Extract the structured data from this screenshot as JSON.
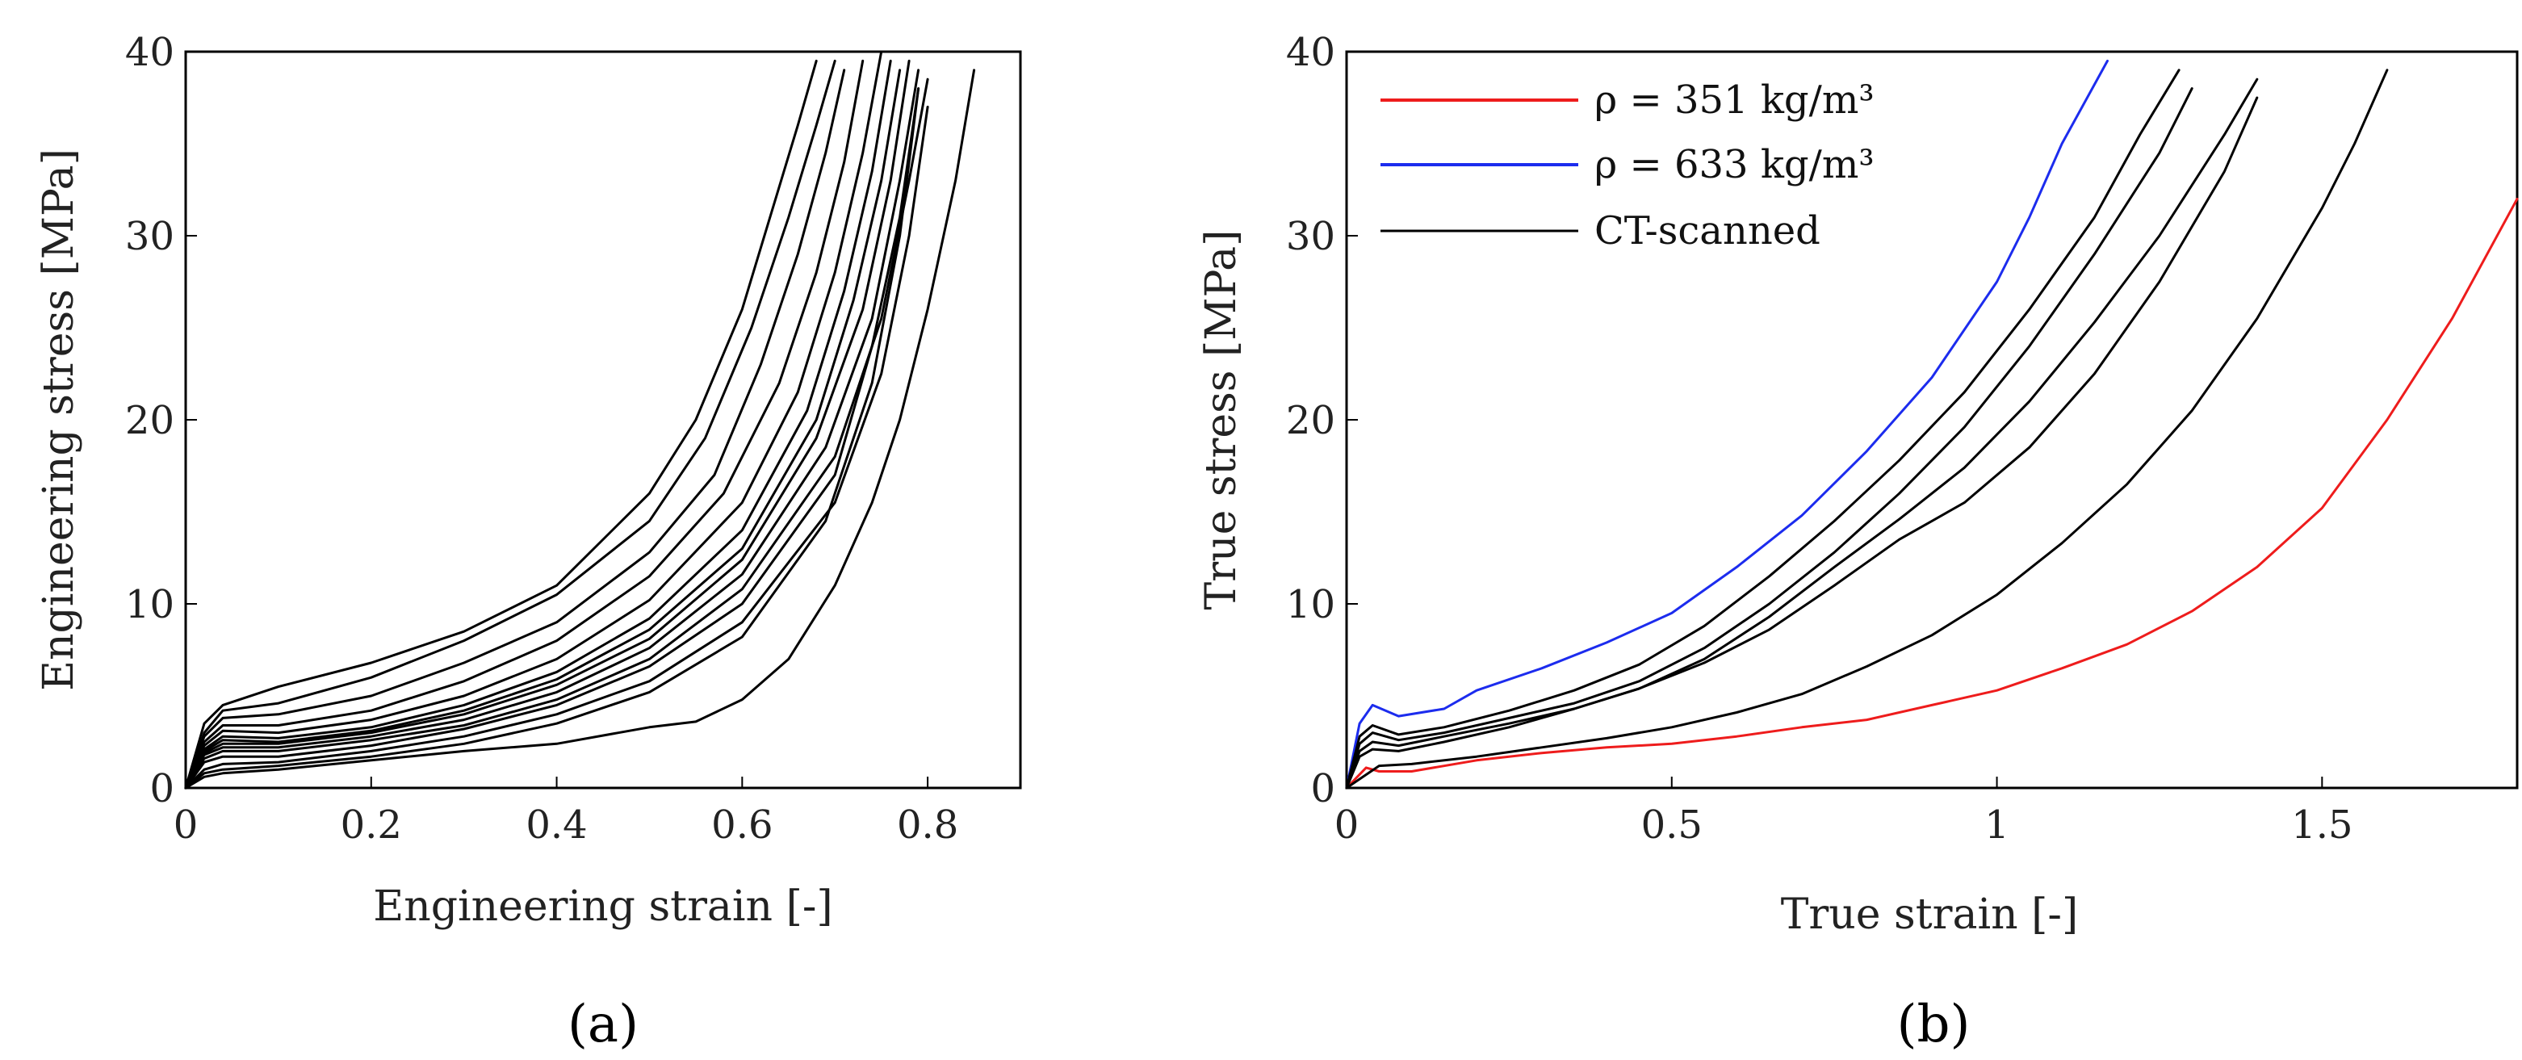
{
  "chart_data": [
    {
      "type": "line",
      "panel_label": "(a)",
      "xlabel": "Engineering strain [-]",
      "ylabel": "Engineering stress [MPa]",
      "xlim": [
        0,
        0.9
      ],
      "ylim": [
        0,
        40
      ],
      "xticks": [
        0,
        0.2,
        0.4,
        0.6,
        0.8
      ],
      "xtick_labels": [
        "0",
        "0.2",
        "0.4",
        "0.6",
        "0.8"
      ],
      "yticks": [
        0,
        10,
        20,
        30,
        40
      ],
      "ytick_labels": [
        "0",
        "10",
        "20",
        "30",
        "40"
      ],
      "grid": false,
      "color": "#000000",
      "series": [
        {
          "x": [
            0,
            0.02,
            0.04,
            0.1,
            0.2,
            0.3,
            0.4,
            0.5,
            0.55,
            0.6,
            0.63,
            0.66,
            0.68
          ],
          "y": [
            0,
            3.5,
            4.5,
            5.5,
            6.8,
            8.5,
            11,
            16,
            20,
            26,
            31,
            36,
            39.5
          ]
        },
        {
          "x": [
            0,
            0.02,
            0.04,
            0.1,
            0.2,
            0.3,
            0.4,
            0.5,
            0.56,
            0.61,
            0.65,
            0.68,
            0.7
          ],
          "y": [
            0,
            3,
            4.2,
            4.6,
            6,
            8,
            10.5,
            14.5,
            19,
            25,
            31,
            36,
            39.5
          ]
        },
        {
          "x": [
            0,
            0.02,
            0.04,
            0.1,
            0.2,
            0.3,
            0.4,
            0.5,
            0.57,
            0.62,
            0.66,
            0.69,
            0.71
          ],
          "y": [
            0,
            2.8,
            3.8,
            4,
            5,
            6.8,
            9,
            12.8,
            17,
            23,
            29,
            34.5,
            39
          ]
        },
        {
          "x": [
            0,
            0.02,
            0.04,
            0.1,
            0.2,
            0.3,
            0.4,
            0.5,
            0.58,
            0.64,
            0.68,
            0.71,
            0.73
          ],
          "y": [
            0,
            2.5,
            3.4,
            3.4,
            4.2,
            5.8,
            8,
            11.5,
            16,
            22,
            28,
            34,
            39.5
          ]
        },
        {
          "x": [
            0,
            0.02,
            0.04,
            0.1,
            0.2,
            0.3,
            0.4,
            0.5,
            0.6,
            0.66,
            0.7,
            0.73,
            0.75
          ],
          "y": [
            0,
            2.3,
            3.1,
            3,
            3.7,
            5,
            7,
            10.2,
            15.5,
            21.5,
            28,
            34.5,
            40
          ]
        },
        {
          "x": [
            0,
            0.02,
            0.04,
            0.1,
            0.2,
            0.3,
            0.4,
            0.5,
            0.6,
            0.67,
            0.71,
            0.74,
            0.76
          ],
          "y": [
            0,
            2.1,
            2.8,
            2.7,
            3.3,
            4.5,
            6.3,
            9.2,
            14,
            20.5,
            27,
            33.5,
            39.5
          ]
        },
        {
          "x": [
            0,
            0.02,
            0.04,
            0.1,
            0.2,
            0.3,
            0.4,
            0.5,
            0.6,
            0.68,
            0.72,
            0.75,
            0.77
          ],
          "y": [
            0,
            2,
            2.6,
            2.5,
            3.1,
            4.2,
            5.9,
            8.6,
            13,
            20,
            26.5,
            33,
            39
          ]
        },
        {
          "x": [
            0,
            0.02,
            0.04,
            0.1,
            0.2,
            0.3,
            0.4,
            0.5,
            0.6,
            0.68,
            0.73,
            0.76,
            0.78
          ],
          "y": [
            0,
            1.9,
            2.4,
            2.4,
            3,
            4,
            5.6,
            8.1,
            12.4,
            19,
            26,
            33,
            39.5
          ]
        },
        {
          "x": [
            0,
            0.02,
            0.04,
            0.1,
            0.2,
            0.3,
            0.4,
            0.5,
            0.6,
            0.69,
            0.74,
            0.77,
            0.79
          ],
          "y": [
            0,
            1.8,
            2.2,
            2.2,
            2.8,
            3.7,
            5.2,
            7.6,
            11.6,
            18.5,
            25.5,
            33,
            39
          ]
        },
        {
          "x": [
            0,
            0.02,
            0.04,
            0.1,
            0.2,
            0.3,
            0.4,
            0.5,
            0.6,
            0.7,
            0.75,
            0.78,
            0.8
          ],
          "y": [
            0,
            1.6,
            2,
            2,
            2.6,
            3.4,
            4.8,
            7,
            10.8,
            18,
            25.5,
            33,
            38.5
          ]
        },
        {
          "x": [
            0,
            0.02,
            0.04,
            0.1,
            0.2,
            0.3,
            0.4,
            0.5,
            0.6,
            0.7,
            0.74,
            0.77,
            0.79
          ],
          "y": [
            0,
            1.4,
            1.7,
            1.7,
            2.3,
            3.2,
            4.5,
            6.6,
            10,
            17,
            24,
            31,
            38
          ]
        },
        {
          "x": [
            0,
            0.02,
            0.04,
            0.1,
            0.2,
            0.3,
            0.4,
            0.5,
            0.6,
            0.7,
            0.75,
            0.78,
            0.8
          ],
          "y": [
            0,
            1,
            1.3,
            1.4,
            2,
            2.8,
            4,
            5.8,
            9,
            15.5,
            22.5,
            30,
            37
          ]
        },
        {
          "x": [
            0,
            0.02,
            0.04,
            0.1,
            0.2,
            0.3,
            0.4,
            0.5,
            0.6,
            0.69,
            0.74,
            0.77,
            0.79
          ],
          "y": [
            0,
            0.8,
            1,
            1.2,
            1.7,
            2.4,
            3.5,
            5.2,
            8.2,
            14.5,
            22,
            30,
            38
          ]
        },
        {
          "x": [
            0,
            0.02,
            0.04,
            0.1,
            0.2,
            0.3,
            0.4,
            0.5,
            0.55,
            0.6,
            0.65,
            0.7,
            0.74,
            0.77,
            0.8,
            0.83,
            0.85
          ],
          "y": [
            0,
            0.6,
            0.8,
            1,
            1.5,
            2,
            2.4,
            3.3,
            3.6,
            4.8,
            7,
            11,
            15.5,
            20,
            26,
            33,
            39
          ]
        }
      ]
    },
    {
      "type": "line",
      "panel_label": "(b)",
      "xlabel": "True strain [-]",
      "ylabel": "True stress [MPa]",
      "xlim": [
        0,
        1.8
      ],
      "ylim": [
        0,
        40
      ],
      "xticks": [
        0,
        0.5,
        1,
        1.5
      ],
      "xtick_labels": [
        "0",
        "0.5",
        "1",
        "1.5"
      ],
      "yticks": [
        0,
        10,
        20,
        30,
        40
      ],
      "ytick_labels": [
        "0",
        "10",
        "20",
        "30",
        "40"
      ],
      "grid": false,
      "legend_position": "top-left",
      "legend": [
        {
          "label": "ρ = 351 kg/m³",
          "color": "#ee1c1c"
        },
        {
          "label": "ρ = 633 kg/m³",
          "color": "#1c2cee"
        },
        {
          "label": "CT-scanned",
          "color": "#000000"
        }
      ],
      "series": [
        {
          "name": "ρ = 351 kg/m³",
          "color": "#ee1c1c",
          "x": [
            0,
            0.03,
            0.05,
            0.1,
            0.2,
            0.3,
            0.4,
            0.5,
            0.6,
            0.7,
            0.8,
            0.9,
            1.0,
            1.1,
            1.2,
            1.3,
            1.4,
            1.5,
            1.6,
            1.7,
            1.8
          ],
          "y": [
            0,
            1.1,
            0.9,
            0.9,
            1.5,
            1.9,
            2.2,
            2.4,
            2.8,
            3.3,
            3.7,
            4.5,
            5.3,
            6.5,
            7.8,
            9.6,
            12,
            15.2,
            20,
            25.5,
            32
          ]
        },
        {
          "name": "ρ = 633 kg/m³",
          "color": "#1c2cee",
          "x": [
            0,
            0.02,
            0.04,
            0.08,
            0.15,
            0.2,
            0.3,
            0.4,
            0.5,
            0.6,
            0.7,
            0.8,
            0.9,
            1.0,
            1.05,
            1.1,
            1.17
          ],
          "y": [
            0,
            3.5,
            4.5,
            3.9,
            4.3,
            5.3,
            6.5,
            7.9,
            9.5,
            12,
            14.8,
            18.3,
            22.3,
            27.5,
            31,
            35,
            39.5
          ]
        },
        {
          "name": "CT-scanned",
          "color": "#000000",
          "x": [
            0,
            0.02,
            0.04,
            0.08,
            0.15,
            0.25,
            0.35,
            0.45,
            0.55,
            0.65,
            0.75,
            0.85,
            0.95,
            1.05,
            1.15,
            1.22,
            1.28
          ],
          "y": [
            0,
            2.8,
            3.4,
            2.9,
            3.3,
            4.2,
            5.3,
            6.7,
            8.8,
            11.5,
            14.5,
            17.8,
            21.5,
            26,
            31,
            35.5,
            39
          ]
        },
        {
          "name": "CT-scanned",
          "color": "#000000",
          "x": [
            0,
            0.02,
            0.04,
            0.08,
            0.15,
            0.25,
            0.35,
            0.45,
            0.55,
            0.65,
            0.75,
            0.85,
            0.95,
            1.05,
            1.15,
            1.25,
            1.3
          ],
          "y": [
            0,
            2.4,
            3,
            2.6,
            3,
            3.8,
            4.6,
            5.8,
            7.6,
            10,
            12.8,
            16,
            19.6,
            24,
            29,
            34.5,
            38
          ]
        },
        {
          "name": "CT-scanned",
          "color": "#000000",
          "x": [
            0,
            0.02,
            0.04,
            0.08,
            0.15,
            0.25,
            0.35,
            0.45,
            0.55,
            0.65,
            0.75,
            0.85,
            0.95,
            1.05,
            1.15,
            1.25,
            1.35,
            1.4
          ],
          "y": [
            0,
            2,
            2.5,
            2.3,
            2.8,
            3.5,
            4.3,
            5.4,
            7,
            9.3,
            12,
            14.6,
            17.4,
            21,
            25.3,
            30,
            35.5,
            38.5
          ]
        },
        {
          "name": "CT-scanned",
          "color": "#000000",
          "x": [
            0,
            0.02,
            0.04,
            0.08,
            0.15,
            0.25,
            0.35,
            0.45,
            0.55,
            0.65,
            0.75,
            0.85,
            0.9,
            0.95,
            1.05,
            1.15,
            1.25,
            1.35,
            1.4
          ],
          "y": [
            0,
            1.7,
            2.1,
            2,
            2.5,
            3.3,
            4.3,
            5.4,
            6.8,
            8.6,
            11,
            13.5,
            14.5,
            15.5,
            18.5,
            22.5,
            27.5,
            33.5,
            37.5
          ]
        },
        {
          "name": "CT-scanned",
          "color": "#000000",
          "x": [
            0,
            0.05,
            0.1,
            0.2,
            0.3,
            0.4,
            0.5,
            0.6,
            0.7,
            0.8,
            0.9,
            1.0,
            1.1,
            1.2,
            1.3,
            1.4,
            1.5,
            1.55,
            1.6
          ],
          "y": [
            0,
            1.2,
            1.3,
            1.7,
            2.2,
            2.7,
            3.3,
            4.1,
            5.1,
            6.6,
            8.3,
            10.5,
            13.3,
            16.5,
            20.5,
            25.5,
            31.5,
            35,
            39
          ]
        }
      ]
    }
  ]
}
